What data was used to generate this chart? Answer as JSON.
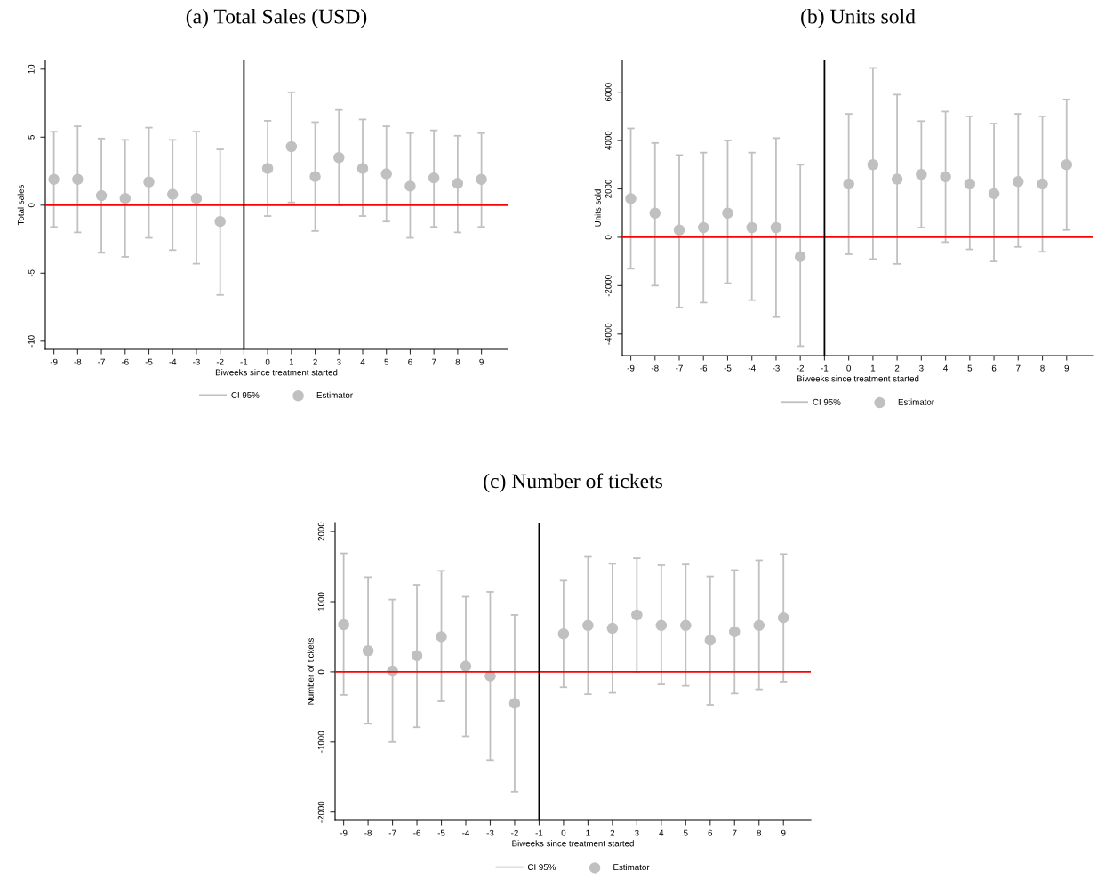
{
  "chart_data": [
    {
      "type": "scatter",
      "title": "(a) Total Sales (USD)",
      "xlabel": "Biweeks since treatment started",
      "ylabel": "Total sales",
      "annotations": [
        "CI 95%"
      ],
      "x": [
        -9,
        -8,
        -7,
        -6,
        -5,
        -4,
        -3,
        -2,
        0,
        1,
        2,
        3,
        4,
        5,
        6,
        7,
        8,
        9
      ],
      "series": [
        {
          "name": "Estimator",
          "color": "#c0c0c0",
          "values": [
            1.9,
            1.9,
            0.7,
            0.5,
            1.7,
            0.8,
            0.5,
            -1.2,
            2.7,
            4.3,
            2.1,
            3.5,
            2.7,
            2.3,
            1.4,
            2.0,
            1.6,
            1.9
          ],
          "errors": [
            [
              -1.6,
              5.4
            ],
            [
              -2.0,
              5.8
            ],
            [
              -3.5,
              4.9
            ],
            [
              -3.8,
              4.8
            ],
            [
              -2.4,
              5.7
            ],
            [
              -3.3,
              4.8
            ],
            [
              -4.3,
              5.4
            ],
            [
              -6.6,
              4.1
            ],
            [
              -0.8,
              6.2
            ],
            [
              0.2,
              8.3
            ],
            [
              -1.9,
              6.1
            ],
            [
              0.0,
              7.0
            ],
            [
              -0.8,
              6.3
            ],
            [
              -1.2,
              5.8
            ],
            [
              -2.4,
              5.3
            ],
            [
              -1.6,
              5.5
            ],
            [
              -2.0,
              5.1
            ],
            [
              -1.6,
              5.3
            ]
          ]
        }
      ],
      "xlim": [
        -9.36,
        10.1
      ],
      "ylim": [
        -10.6,
        10.64
      ],
      "xticks": [
        -9,
        -8,
        -7,
        -6,
        -5,
        -4,
        -3,
        -2,
        -1,
        0,
        1,
        2,
        3,
        4,
        5,
        6,
        7,
        8,
        9
      ],
      "yticks": [
        -10,
        -5,
        0,
        5,
        10
      ],
      "ref_lines": [
        {
          "axis": "y",
          "value": 0,
          "color": "#ff0000"
        },
        {
          "axis": "x",
          "value": -1,
          "color": "#000000"
        }
      ],
      "marker": "circle",
      "legend": "bottom"
    },
    {
      "type": "scatter",
      "title": "(b) Units sold",
      "xlabel": "Biweeks since treatment started",
      "ylabel": "Units sold",
      "annotations": [
        "CI 95%"
      ],
      "x": [
        -9,
        -8,
        -7,
        -6,
        -5,
        -4,
        -3,
        -2,
        0,
        1,
        2,
        3,
        4,
        5,
        6,
        7,
        8,
        9
      ],
      "series": [
        {
          "name": "Estimator",
          "color": "#c0c0c0",
          "values": [
            1600,
            1000,
            300,
            400,
            1000,
            400,
            400,
            -800,
            2200,
            3000,
            2400,
            2600,
            2500,
            2200,
            1800,
            2300,
            2200,
            3000
          ],
          "errors": [
            [
              -1300,
              4500
            ],
            [
              -2000,
              3900
            ],
            [
              -2900,
              3400
            ],
            [
              -2700,
              3500
            ],
            [
              -1900,
              4000
            ],
            [
              -2600,
              3500
            ],
            [
              -3300,
              4100
            ],
            [
              -4500,
              3000
            ],
            [
              -700,
              5100
            ],
            [
              -900,
              7000
            ],
            [
              -1100,
              5900
            ],
            [
              400,
              4800
            ],
            [
              -200,
              5200
            ],
            [
              -500,
              5000
            ],
            [
              -1000,
              4700
            ],
            [
              -400,
              5100
            ],
            [
              -600,
              5000
            ],
            [
              300,
              5700
            ]
          ]
        }
      ],
      "xlim": [
        -9.35,
        10.11
      ],
      "ylim": [
        -4890,
        7310
      ],
      "xticks": [
        -9,
        -8,
        -7,
        -6,
        -5,
        -4,
        -3,
        -2,
        -1,
        0,
        1,
        2,
        3,
        4,
        5,
        6,
        7,
        8,
        9
      ],
      "yticks": [
        -4000,
        -2000,
        0,
        2000,
        4000,
        6000
      ],
      "ref_lines": [
        {
          "axis": "y",
          "value": 0,
          "color": "#ff0000"
        },
        {
          "axis": "x",
          "value": -1,
          "color": "#000000"
        }
      ],
      "marker": "circle",
      "legend": "bottom"
    },
    {
      "type": "scatter",
      "title": "(c) Number of tickets",
      "xlabel": "Biweeks since treatment started",
      "ylabel": "Number of tickets",
      "annotations": [
        "CI 95%"
      ],
      "x": [
        -9,
        -8,
        -7,
        -6,
        -5,
        -4,
        -3,
        -2,
        0,
        1,
        2,
        3,
        4,
        5,
        6,
        7,
        8,
        9
      ],
      "series": [
        {
          "name": "Estimator",
          "color": "#c0c0c0",
          "values": [
            670,
            300,
            10,
            230,
            500,
            80,
            -60,
            -450,
            540,
            660,
            620,
            810,
            660,
            660,
            450,
            570,
            660,
            770
          ],
          "errors": [
            [
              -330,
              1690
            ],
            [
              -740,
              1350
            ],
            [
              -1000,
              1030
            ],
            [
              -790,
              1240
            ],
            [
              -420,
              1440
            ],
            [
              -920,
              1070
            ],
            [
              -1260,
              1140
            ],
            [
              -1710,
              810
            ],
            [
              -220,
              1300
            ],
            [
              -320,
              1640
            ],
            [
              -300,
              1540
            ],
            [
              0,
              1620
            ],
            [
              -180,
              1520
            ],
            [
              -200,
              1530
            ],
            [
              -470,
              1360
            ],
            [
              -310,
              1450
            ],
            [
              -250,
              1590
            ],
            [
              -140,
              1680
            ]
          ]
        }
      ],
      "xlim": [
        -9.35,
        10.12
      ],
      "ylim": [
        -2118,
        2128
      ],
      "xticks": [
        -9,
        -8,
        -7,
        -6,
        -5,
        -4,
        -3,
        -2,
        -1,
        0,
        1,
        2,
        3,
        4,
        5,
        6,
        7,
        8,
        9
      ],
      "yticks": [
        -2000,
        -1000,
        0,
        1000,
        2000
      ],
      "ref_lines": [
        {
          "axis": "y",
          "value": 0,
          "color": "#ff0000"
        },
        {
          "axis": "x",
          "value": -1,
          "color": "#000000"
        }
      ],
      "marker": "circle",
      "legend": "bottom"
    }
  ]
}
